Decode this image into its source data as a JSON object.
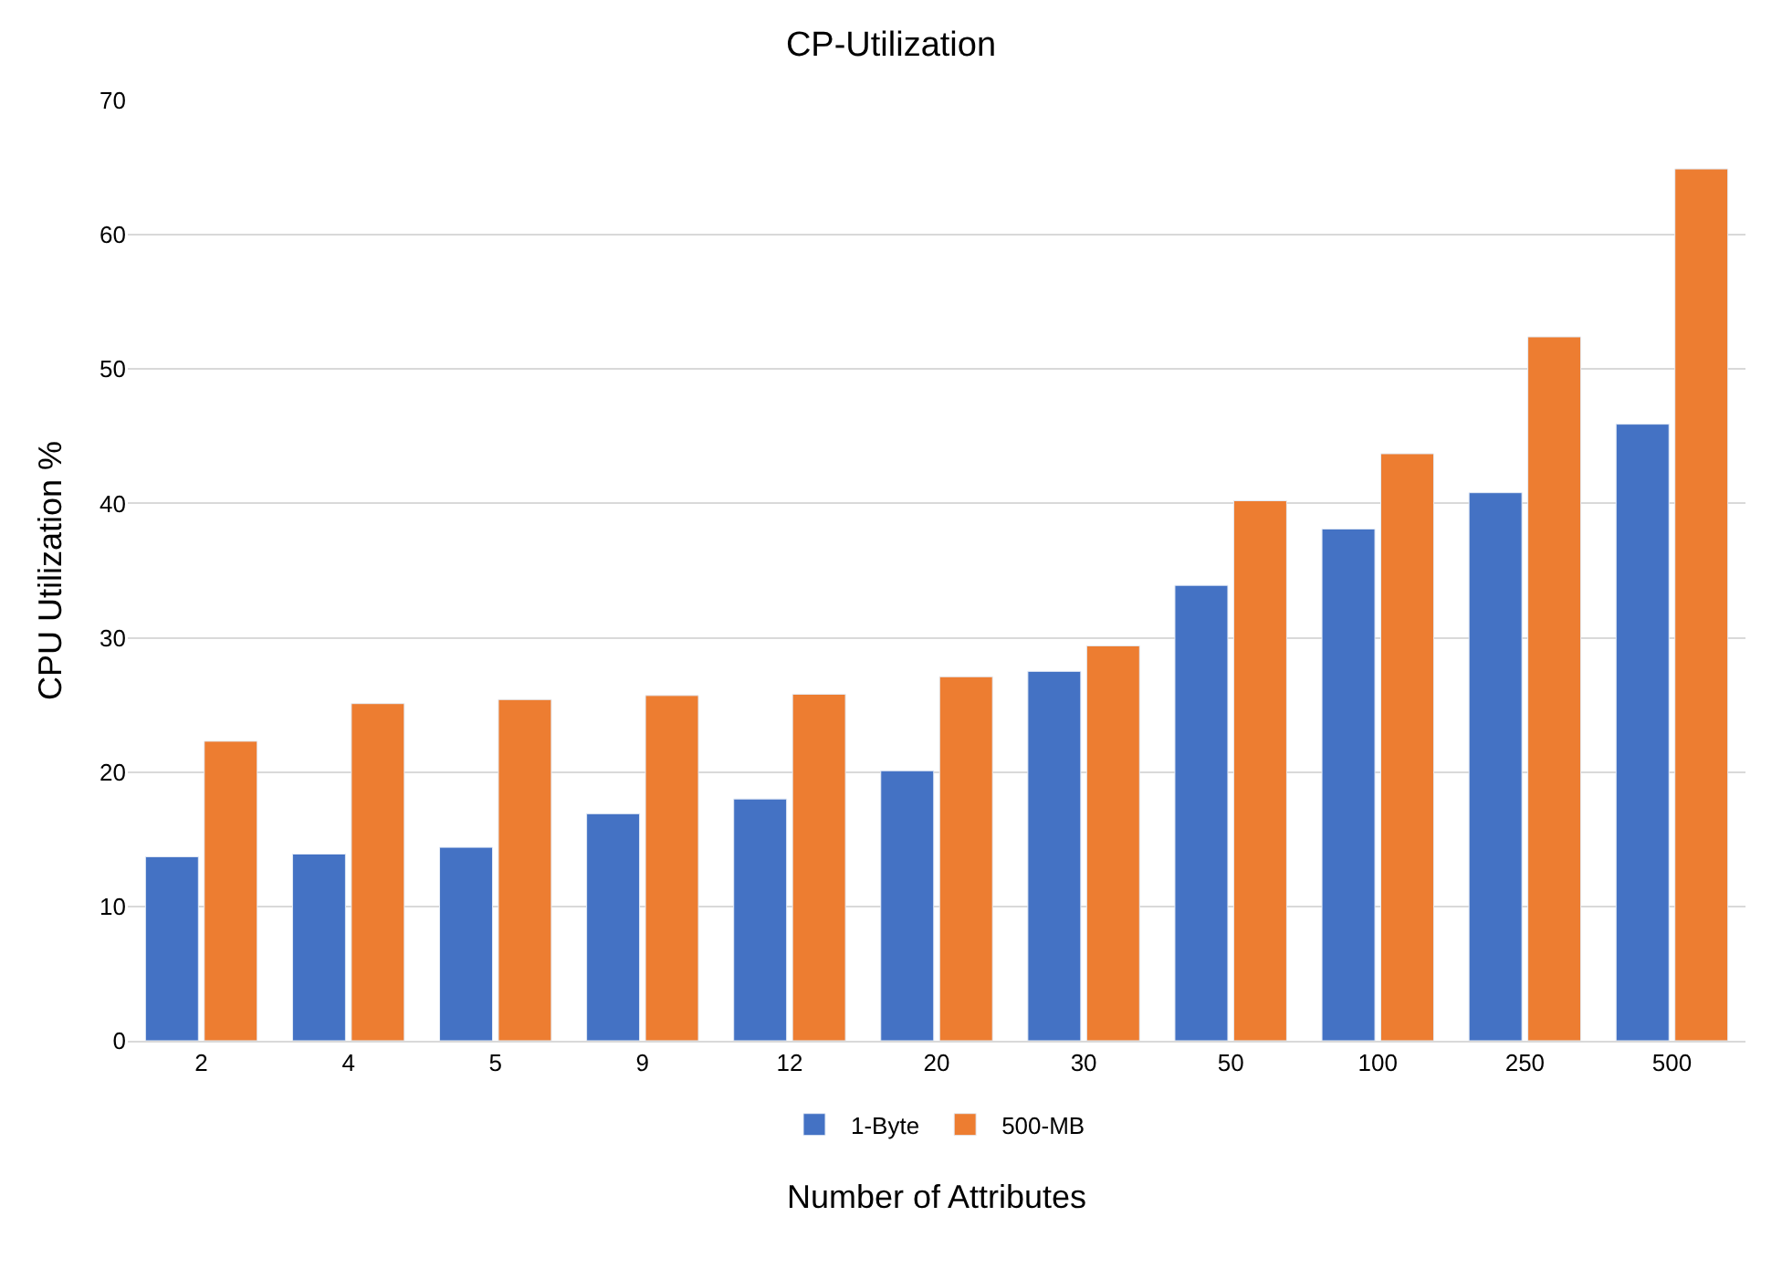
{
  "chart_data": {
    "type": "bar",
    "title": "CP-Utilization",
    "xlabel": "Number of Attributes",
    "ylabel": "CPU Utilization %",
    "categories": [
      "2",
      "4",
      "5",
      "9",
      "12",
      "20",
      "30",
      "50",
      "100",
      "250",
      "500"
    ],
    "series": [
      {
        "name": "1-Byte",
        "color": "#4472c4",
        "values": [
          13.7,
          13.9,
          14.4,
          16.9,
          18.0,
          20.1,
          27.5,
          33.9,
          38.1,
          40.8,
          45.9
        ]
      },
      {
        "name": "500-MB",
        "color": "#ed7d31",
        "values": [
          22.3,
          25.1,
          25.4,
          25.7,
          25.8,
          27.1,
          29.4,
          40.2,
          43.7,
          52.4,
          64.9
        ]
      }
    ],
    "ylim": [
      0,
      70
    ],
    "yticks": [
      0,
      10,
      20,
      30,
      40,
      50,
      60,
      70
    ],
    "grid": "y",
    "legend": "bottom"
  }
}
